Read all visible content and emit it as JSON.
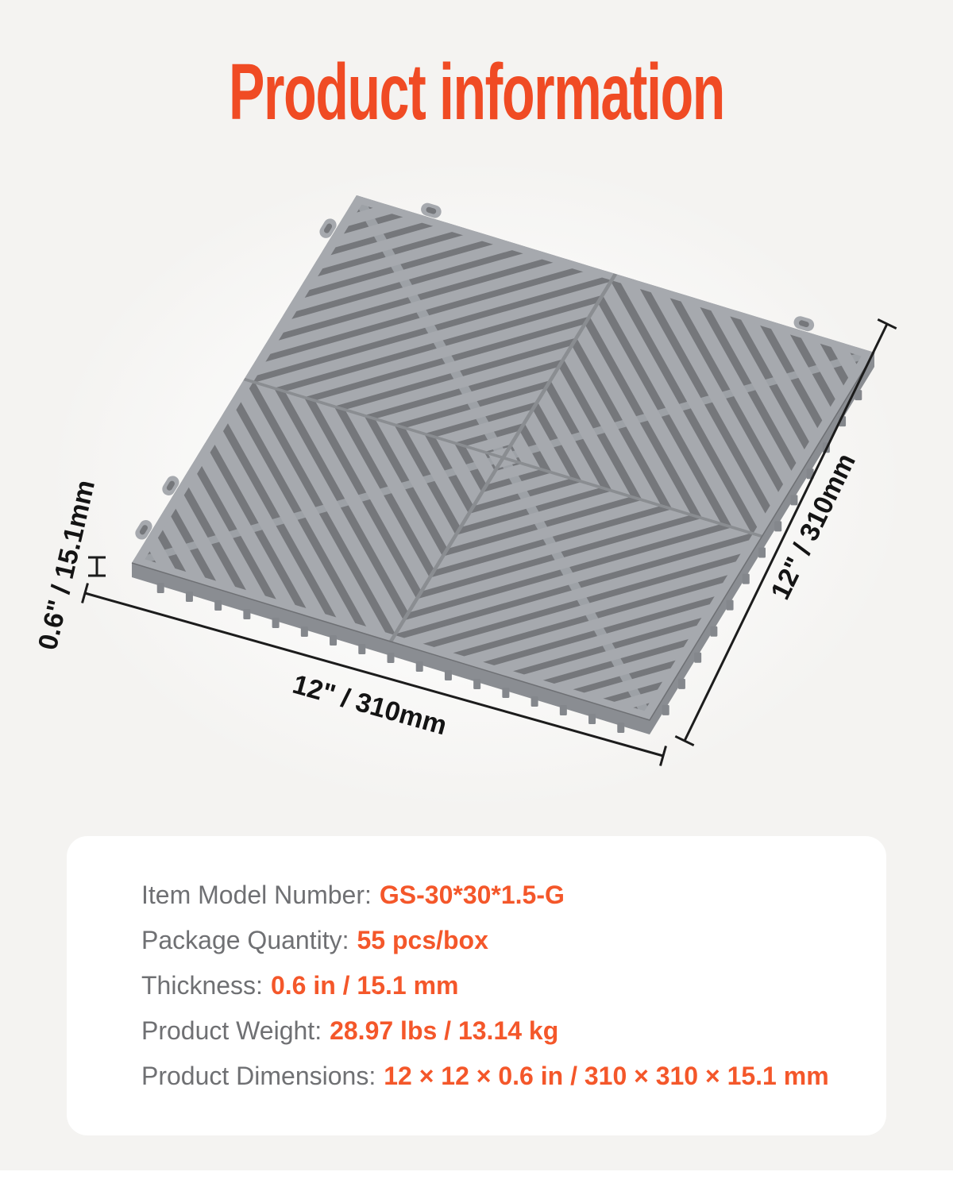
{
  "title": "Product information",
  "annotations": {
    "thickness": "0.6\" / 15.1mm",
    "width": "12\" / 310mm",
    "depth": "12\" / 310mm"
  },
  "specs": {
    "rows": [
      {
        "label": "Item Model Number:",
        "value": "GS-30*30*1.5-G"
      },
      {
        "label": "Package Quantity:",
        "value": "55 pcs/box"
      },
      {
        "label": "Thickness:",
        "value": "0.6 in / 15.1 mm"
      },
      {
        "label": "Product Weight:",
        "value": "28.97 lbs / 13.14 kg"
      },
      {
        "label": "Product Dimensions:",
        "value": "12 × 12 × 0.6 in / 310 × 310 × 15.1 mm"
      }
    ]
  },
  "colors": {
    "accent": "#F04B24",
    "value_text": "#F4572A",
    "label_text": "#6F7073",
    "background": "#F4F3F1",
    "card": "#FFFFFF",
    "dimension_lines": "#1C1C1C"
  },
  "tile": {
    "description": "gray interlocking garage floor vent tile, perspective view",
    "rib": "#A6A9AE",
    "base": "#75777B",
    "side": "#8A8D92",
    "teeth": "#84878C",
    "seam": "#8A8D91",
    "connector": "#9DA1A6"
  }
}
